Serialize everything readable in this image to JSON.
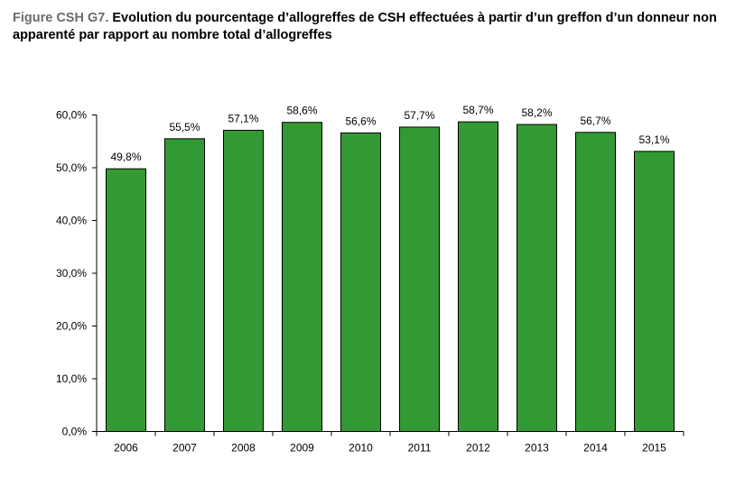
{
  "title": {
    "figure_label": "Figure CSH G7.",
    "text": "Evolution du pourcentage d’allogreffes de CSH effectuées à partir d’un greffon d’un donneur non apparenté par rapport au nombre total d’allogreffes"
  },
  "chart_data": {
    "type": "bar",
    "categories": [
      "2006",
      "2007",
      "2008",
      "2009",
      "2010",
      "2011",
      "2012",
      "2013",
      "2014",
      "2015"
    ],
    "values": [
      49.8,
      55.5,
      57.1,
      58.6,
      56.6,
      57.7,
      58.7,
      58.2,
      56.7,
      53.1
    ],
    "data_labels": [
      "49,8%",
      "55,5%",
      "57,1%",
      "58,6%",
      "56,6%",
      "57,7%",
      "58,7%",
      "58,2%",
      "56,7%",
      "53,1%"
    ],
    "yticks": [
      0,
      10,
      20,
      30,
      40,
      50,
      60
    ],
    "ytick_labels": [
      "0,0%",
      "10,0%",
      "20,0%",
      "30,0%",
      "40,0%",
      "50,0%",
      "60,0%"
    ],
    "ylim": [
      0,
      60
    ],
    "xlabel": "",
    "ylabel": "",
    "grid": false,
    "bar_color": "#339933"
  }
}
